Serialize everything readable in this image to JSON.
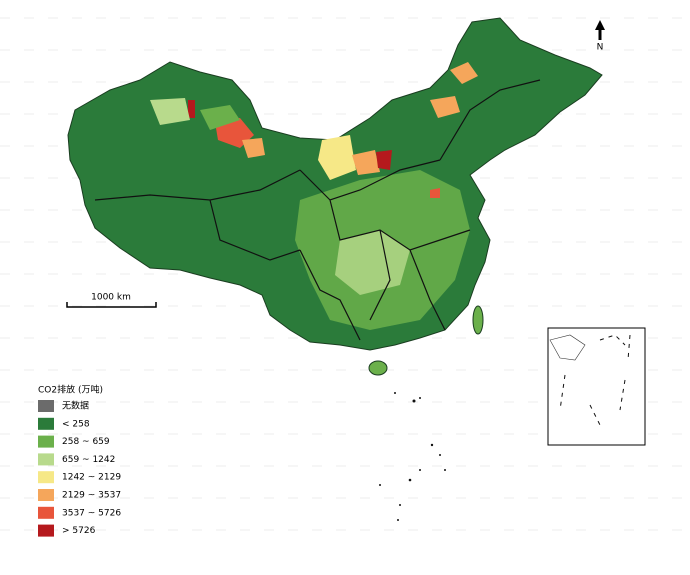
{
  "legend": {
    "title": "CO2排放 (万吨)",
    "items": [
      {
        "label": "无数据",
        "color": "#6b6b6b"
      },
      {
        "label": "< 258",
        "color": "#2b7b3a"
      },
      {
        "label": "258 ~ 659",
        "color": "#6bb04b"
      },
      {
        "label": "659 ~ 1242",
        "color": "#b8da8c"
      },
      {
        "label": "1242 ~ 2129",
        "color": "#f6e887"
      },
      {
        "label": "2129 ~ 3537",
        "color": "#f5a65b"
      },
      {
        "label": "3537 ~ 5726",
        "color": "#e8553b"
      },
      {
        "label": "> 5726",
        "color": "#b5191d"
      }
    ]
  },
  "scale_bar": {
    "label": "1000 km"
  },
  "north_arrow": {
    "label": "N"
  }
}
